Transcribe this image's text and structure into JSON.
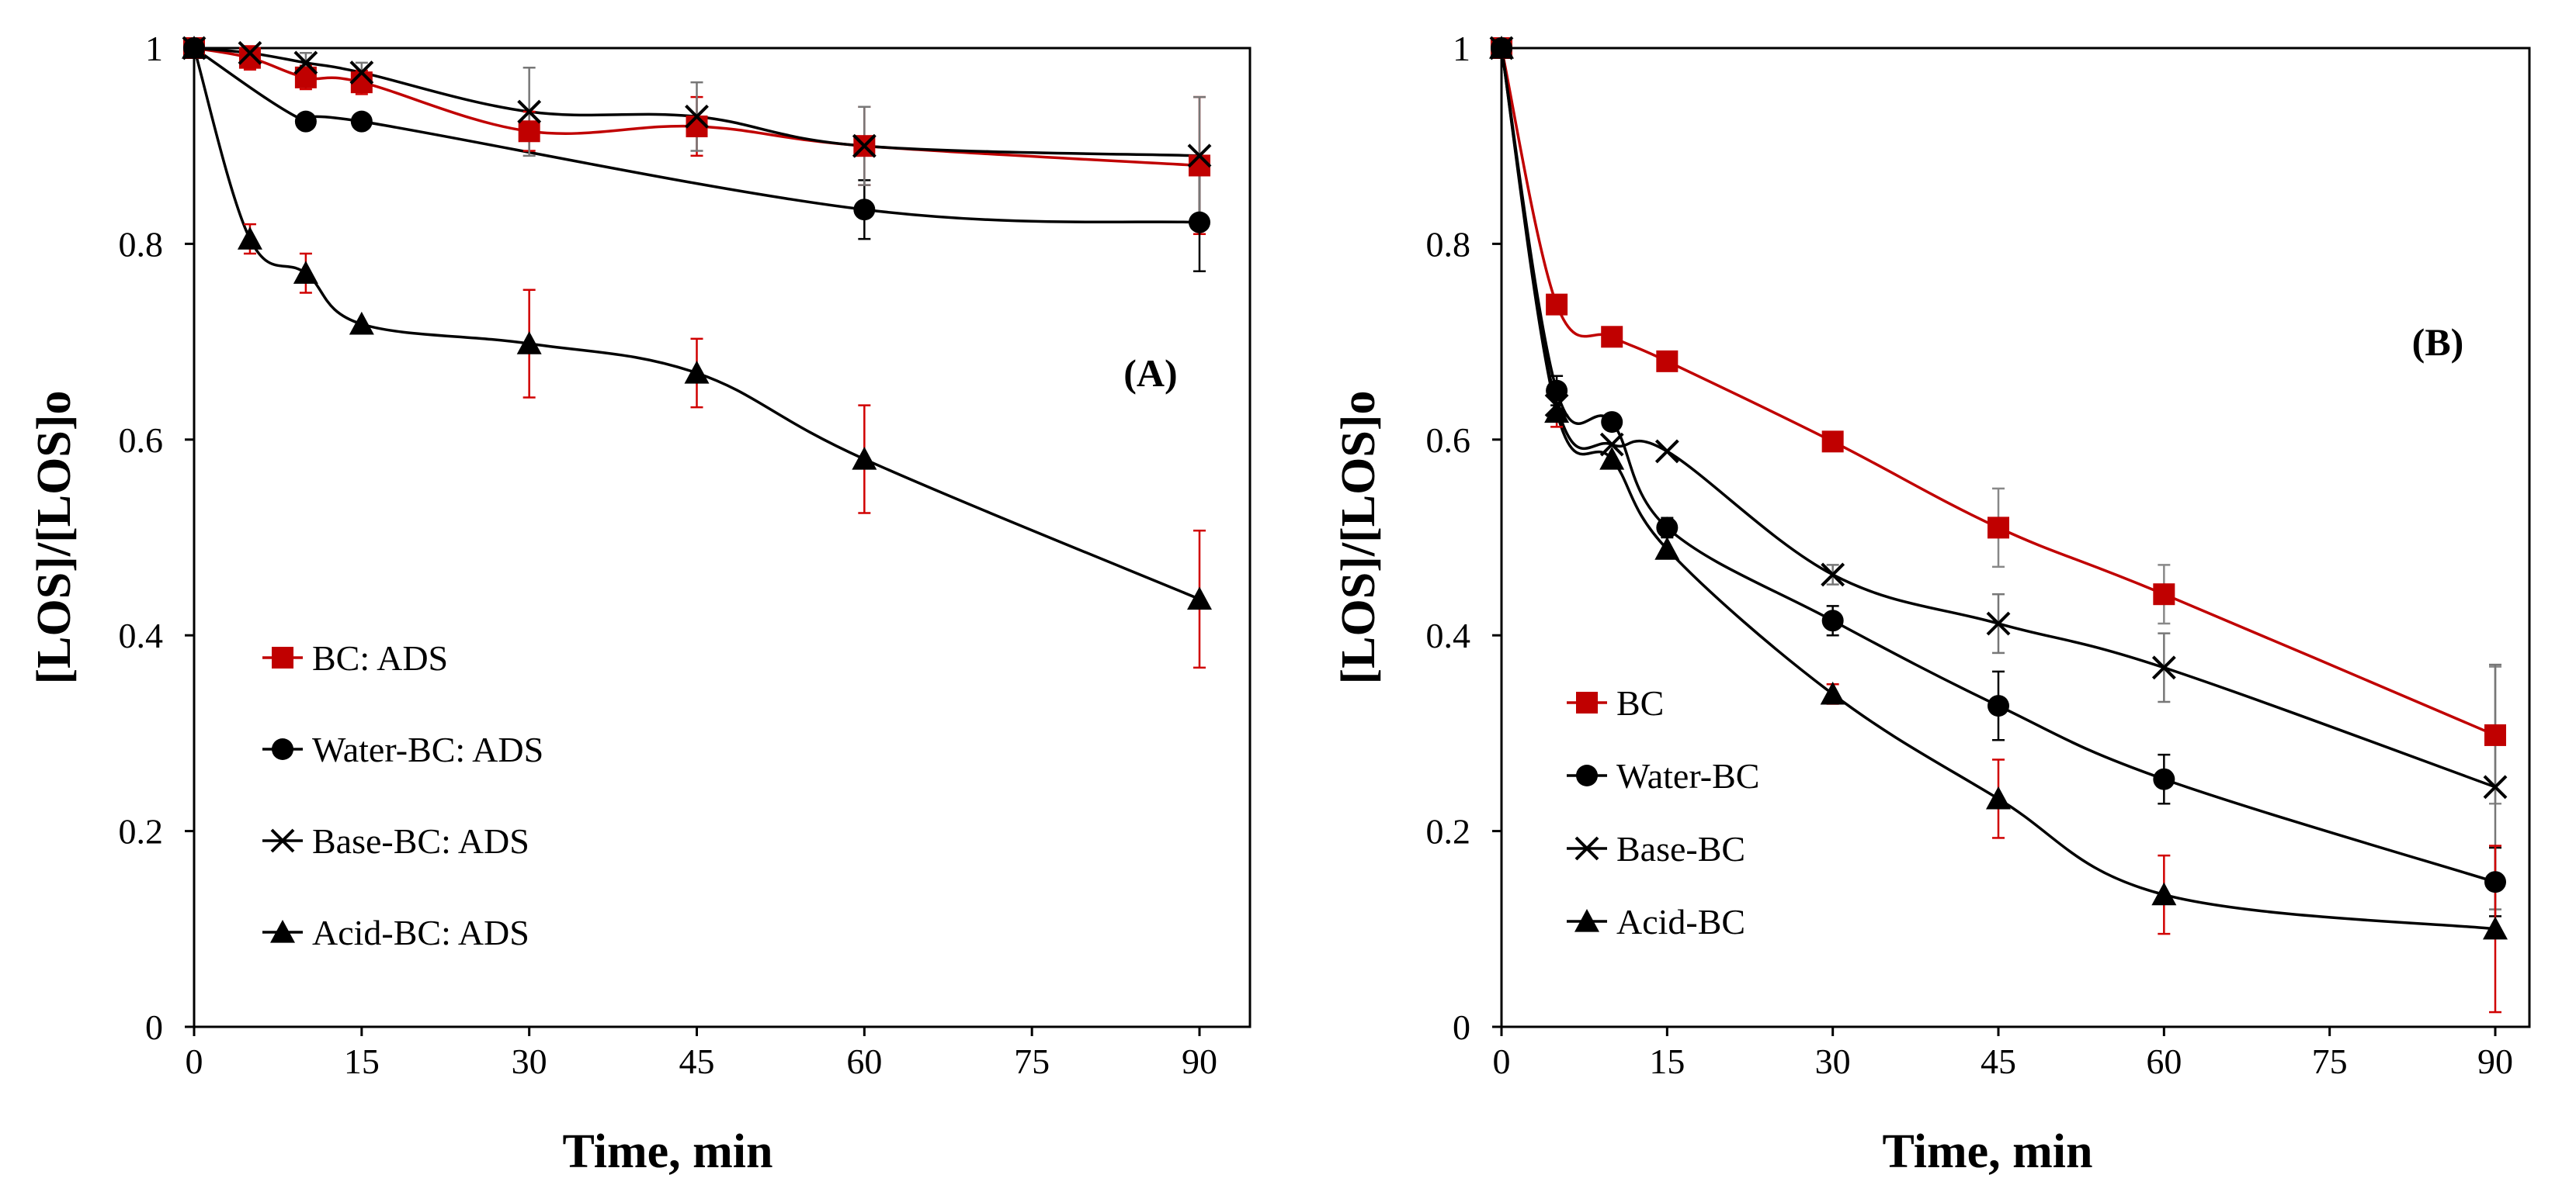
{
  "figure": {
    "panels": [
      "A",
      "B"
    ]
  },
  "chart_data": [
    {
      "type": "line",
      "panel_label": "(A)",
      "title": "",
      "xlabel": "Time, min",
      "ylabel": "[LOS]/[LOS]o",
      "xlim": [
        0,
        90
      ],
      "ylim": [
        0,
        1
      ],
      "x_ticks": [
        "0",
        "15",
        "30",
        "45",
        "60",
        "75",
        "90"
      ],
      "y_ticks": [
        "0",
        "0.2",
        "0.4",
        "0.6",
        "0.8",
        "1"
      ],
      "grid": false,
      "legend_position": "bottom-left",
      "series": [
        {
          "name": "BC: ADS",
          "marker": "square",
          "color": "#c00000",
          "err_color": "#d00000",
          "x": [
            0,
            5,
            10,
            15,
            30,
            45,
            60,
            90
          ],
          "values": [
            1.0,
            0.99,
            0.97,
            0.965,
            0.915,
            0.92,
            0.9,
            0.88
          ],
          "errors": [
            0,
            0.012,
            0.012,
            0.012,
            0.02,
            0.03,
            0.04,
            0.07
          ]
        },
        {
          "name": "Water-BC: ADS",
          "marker": "circle",
          "color": "#000000",
          "err_color": "#000000",
          "x": [
            0,
            10,
            15,
            60,
            90
          ],
          "values": [
            1.0,
            0.925,
            0.925,
            0.835,
            0.822
          ],
          "errors": [
            0,
            0,
            0,
            0.03,
            0.05
          ]
        },
        {
          "name": "Base-BC: ADS",
          "marker": "x",
          "color": "#000000",
          "err_color": "#777777",
          "x": [
            0,
            5,
            10,
            15,
            30,
            45,
            60,
            90
          ],
          "values": [
            1.0,
            0.995,
            0.985,
            0.975,
            0.935,
            0.93,
            0.9,
            0.89
          ],
          "errors": [
            0,
            0.005,
            0.01,
            0.01,
            0.045,
            0.035,
            0.04,
            0.06
          ]
        },
        {
          "name": "Acid-BC: ADS",
          "marker": "triangle",
          "color": "#000000",
          "err_color": "#d00000",
          "x": [
            0,
            5,
            10,
            15,
            30,
            45,
            60,
            90
          ],
          "values": [
            1.0,
            0.805,
            0.77,
            0.718,
            0.698,
            0.668,
            0.58,
            0.437
          ],
          "errors": [
            0,
            0.015,
            0.02,
            0,
            0.055,
            0.035,
            0.055,
            0.07
          ]
        }
      ]
    },
    {
      "type": "line",
      "panel_label": "(B)",
      "title": "",
      "xlabel": "Time, min",
      "ylabel": "[LOS]/[LOS]o",
      "xlim": [
        0,
        90
      ],
      "ylim": [
        0,
        1
      ],
      "x_ticks": [
        "0",
        "15",
        "30",
        "45",
        "60",
        "75",
        "90"
      ],
      "y_ticks": [
        "0",
        "0.2",
        "0.4",
        "0.6",
        "0.8",
        "1"
      ],
      "grid": false,
      "legend_position": "bottom-left",
      "series": [
        {
          "name": "BC",
          "marker": "square",
          "color": "#c00000",
          "err_color": "#888888",
          "x": [
            0,
            5,
            10,
            15,
            30,
            45,
            60,
            90
          ],
          "values": [
            1.0,
            0.738,
            0.705,
            0.68,
            0.598,
            0.51,
            0.442,
            0.298
          ],
          "errors": [
            0,
            0,
            0,
            0,
            0,
            0.04,
            0.03,
            0.07
          ]
        },
        {
          "name": "Water-BC",
          "marker": "circle",
          "color": "#000000",
          "err_color": "#000000",
          "x": [
            0,
            5,
            10,
            15,
            30,
            45,
            60,
            90
          ],
          "values": [
            1.0,
            0.65,
            0.618,
            0.51,
            0.415,
            0.328,
            0.253,
            0.148
          ],
          "errors": [
            0,
            0.015,
            0,
            0.01,
            0.015,
            0.035,
            0.025,
            0.035
          ]
        },
        {
          "name": "Base-BC",
          "marker": "x",
          "color": "#000000",
          "err_color": "#777777",
          "x": [
            0,
            5,
            10,
            15,
            30,
            45,
            60,
            90
          ],
          "values": [
            1.0,
            0.635,
            0.595,
            0.588,
            0.462,
            0.412,
            0.367,
            0.245
          ],
          "errors": [
            0,
            0,
            0,
            0,
            0.01,
            0.03,
            0.035,
            0.125
          ]
        },
        {
          "name": "Acid-BC",
          "marker": "triangle",
          "color": "#000000",
          "err_color": "#d00000",
          "x": [
            0,
            5,
            10,
            15,
            30,
            45,
            60,
            90
          ],
          "values": [
            1.0,
            0.628,
            0.58,
            0.488,
            0.34,
            0.233,
            0.135,
            0.1
          ],
          "errors": [
            0,
            0.015,
            0,
            0,
            0.01,
            0.04,
            0.04,
            0.085
          ]
        }
      ]
    }
  ]
}
